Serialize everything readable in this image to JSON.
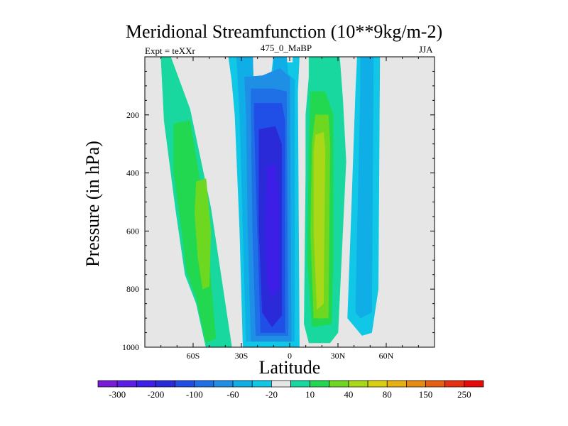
{
  "chart_data": {
    "type": "heatmap",
    "title": "Meridional Streamfunction (10**9kg/m-2)",
    "subtitle_left": "Expt = teXXr",
    "subtitle_center": "475_0_MaBP",
    "subtitle_right": "JJA",
    "xlabel": "Latitude",
    "ylabel": "Pressure (in hPa)",
    "xlim": [
      -90,
      90
    ],
    "ylim": [
      0,
      1000
    ],
    "y_inverted": true,
    "x_ticks": [
      -60,
      -30,
      0,
      30,
      60
    ],
    "x_tick_labels": [
      "60S",
      "30S",
      "0",
      "30N",
      "60N"
    ],
    "y_ticks": [
      200,
      400,
      600,
      800,
      1000
    ],
    "y_tick_labels": [
      "200",
      "400",
      "600",
      "800",
      "1000"
    ],
    "background_color": "#e6e6e6",
    "colorbar": {
      "colors": [
        "#7a1ad9",
        "#5c1ee6",
        "#3d1ee6",
        "#2a2ad9",
        "#1f4fe6",
        "#1f6fe6",
        "#1f8fe6",
        "#10aee6",
        "#10c8e6",
        "#e6e6e6",
        "#18d8a0",
        "#22d850",
        "#6ed820",
        "#a8d818",
        "#d8d010",
        "#e6b010",
        "#e68a10",
        "#e66010",
        "#e63010",
        "#e60a0a"
      ],
      "labels": [
        "-300",
        "-200",
        "-100",
        "-60",
        "-20",
        "10",
        "40",
        "80",
        "150",
        "250"
      ]
    },
    "bands": [
      {
        "name": "sh-outer-cell",
        "color": "#18d8a0",
        "value": 10,
        "points": [
          [
            -80,
            0
          ],
          [
            -74,
            0
          ],
          [
            -62,
            180
          ],
          [
            -49,
            520
          ],
          [
            -36,
            1000
          ],
          [
            -52,
            1000
          ],
          [
            -58,
            850
          ],
          [
            -65,
            750
          ],
          [
            -71,
            520
          ],
          [
            -78,
            220
          ]
        ]
      },
      {
        "name": "sh-outer-cell",
        "color": "#22d850",
        "value": 40,
        "points": [
          [
            -72,
            230
          ],
          [
            -62,
            220
          ],
          [
            -55,
            450
          ],
          [
            -50,
            700
          ],
          [
            -46,
            970
          ],
          [
            -52,
            985
          ],
          [
            -58,
            830
          ],
          [
            -64,
            740
          ],
          [
            -68,
            560
          ],
          [
            -72,
            400
          ]
        ]
      },
      {
        "name": "sh-outer-cell",
        "color": "#6ed820",
        "value": 80,
        "points": [
          [
            -58,
            430
          ],
          [
            -52,
            420
          ],
          [
            -49,
            600
          ],
          [
            -50,
            790
          ],
          [
            -54,
            800
          ],
          [
            -57,
            690
          ],
          [
            -59,
            540
          ]
        ]
      },
      {
        "name": "sh-hadley-cell",
        "color": "#10c8e6",
        "value": -20,
        "points": [
          [
            -38,
            0
          ],
          [
            -23,
            0
          ],
          [
            -22,
            230
          ],
          [
            -15,
            230
          ],
          [
            -10,
            0
          ],
          [
            -3,
            0
          ],
          [
            -3,
            20
          ],
          [
            2,
            20
          ],
          [
            2,
            0
          ],
          [
            6,
            0
          ],
          [
            5,
            120
          ],
          [
            6,
            1000
          ],
          [
            -29,
            1000
          ],
          [
            -31,
            600
          ],
          [
            -34,
            200
          ],
          [
            -36,
            80
          ]
        ]
      },
      {
        "name": "sh-hadley-cell",
        "color": "#10aee6",
        "value": -30,
        "points": [
          [
            -33,
            0
          ],
          [
            -23,
            0
          ],
          [
            -22,
            200
          ],
          [
            -10,
            200
          ],
          [
            -10,
            0
          ],
          [
            -2,
            0
          ],
          [
            -1,
            60
          ],
          [
            3,
            80
          ],
          [
            3,
            980
          ],
          [
            -27,
            980
          ],
          [
            -29,
            600
          ],
          [
            -31,
            200
          ]
        ]
      },
      {
        "name": "sh-hadley-cell",
        "color": "#1f8fe6",
        "value": -40,
        "points": [
          [
            -28,
            70
          ],
          [
            -17,
            65
          ],
          [
            -6,
            40
          ],
          [
            0,
            70
          ],
          [
            1,
            980
          ],
          [
            -24,
            980
          ],
          [
            -26,
            600
          ],
          [
            -27,
            200
          ]
        ]
      },
      {
        "name": "sh-hadley-cell",
        "color": "#1f6fe6",
        "value": -60,
        "points": [
          [
            -24,
            110
          ],
          [
            -10,
            110
          ],
          [
            -2,
            120
          ],
          [
            -1,
            960
          ],
          [
            -21,
            960
          ],
          [
            -23,
            600
          ],
          [
            -24,
            200
          ]
        ]
      },
      {
        "name": "sh-hadley-cell",
        "color": "#1f4fe6",
        "value": -80,
        "points": [
          [
            -22,
            160
          ],
          [
            -5,
            160
          ],
          [
            -3,
            220
          ],
          [
            -3,
            950
          ],
          [
            -18,
            950
          ],
          [
            -20,
            600
          ],
          [
            -22,
            220
          ]
        ]
      },
      {
        "name": "sh-hadley-cell",
        "color": "#2a2ad9",
        "value": -100,
        "points": [
          [
            -19,
            250
          ],
          [
            -9,
            240
          ],
          [
            -5,
            300
          ],
          [
            -5,
            890
          ],
          [
            -11,
            930
          ],
          [
            -17,
            880
          ],
          [
            -19,
            600
          ]
        ]
      },
      {
        "name": "sh-hadley-cell",
        "color": "#3d1ee6",
        "value": -150,
        "points": [
          [
            -14,
            380
          ],
          [
            -9,
            370
          ],
          [
            -7,
            480
          ],
          [
            -7,
            800
          ],
          [
            -11,
            830
          ],
          [
            -14,
            780
          ],
          [
            -15,
            600
          ]
        ]
      },
      {
        "name": "nh-hadley-cell",
        "color": "#18d8a0",
        "value": 10,
        "points": [
          [
            12,
            0
          ],
          [
            31,
            0
          ],
          [
            33,
            150
          ],
          [
            35,
            360
          ],
          [
            30,
            950
          ],
          [
            25,
            985
          ],
          [
            12,
            985
          ],
          [
            9,
            920
          ],
          [
            10,
            400
          ],
          [
            10,
            200
          ],
          [
            12,
            70
          ]
        ]
      },
      {
        "name": "nh-hadley-cell",
        "color": "#22d850",
        "value": 40,
        "points": [
          [
            13,
            120
          ],
          [
            22,
            120
          ],
          [
            27,
            200
          ],
          [
            27,
            700
          ],
          [
            26,
            920
          ],
          [
            14,
            930
          ],
          [
            11,
            700
          ],
          [
            12,
            300
          ]
        ]
      },
      {
        "name": "nh-hadley-cell",
        "color": "#6ed820",
        "value": 80,
        "points": [
          [
            16,
            200
          ],
          [
            24,
            200
          ],
          [
            25,
            300
          ],
          [
            24,
            900
          ],
          [
            15,
            900
          ],
          [
            13,
            600
          ],
          [
            14,
            300
          ]
        ]
      },
      {
        "name": "nh-hadley-cell",
        "color": "#a8d818",
        "value": 100,
        "points": [
          [
            16,
            270
          ],
          [
            21,
            260
          ],
          [
            22,
            320
          ],
          [
            21,
            850
          ],
          [
            17,
            870
          ],
          [
            15,
            600
          ],
          [
            15,
            330
          ]
        ]
      },
      {
        "name": "nh-ferrel-cell",
        "color": "#10c8e6",
        "value": -20,
        "points": [
          [
            42,
            0
          ],
          [
            56,
            0
          ],
          [
            55,
            800
          ],
          [
            51,
            950
          ],
          [
            45,
            960
          ],
          [
            36,
            900
          ],
          [
            38,
            600
          ],
          [
            41,
            120
          ]
        ]
      },
      {
        "name": "nh-ferrel-cell",
        "color": "#10aee6",
        "value": -30,
        "points": [
          [
            44,
            0
          ],
          [
            52,
            0
          ],
          [
            51,
            880
          ],
          [
            44,
            900
          ],
          [
            41,
            880
          ],
          [
            42,
            600
          ],
          [
            44,
            120
          ]
        ]
      }
    ]
  }
}
